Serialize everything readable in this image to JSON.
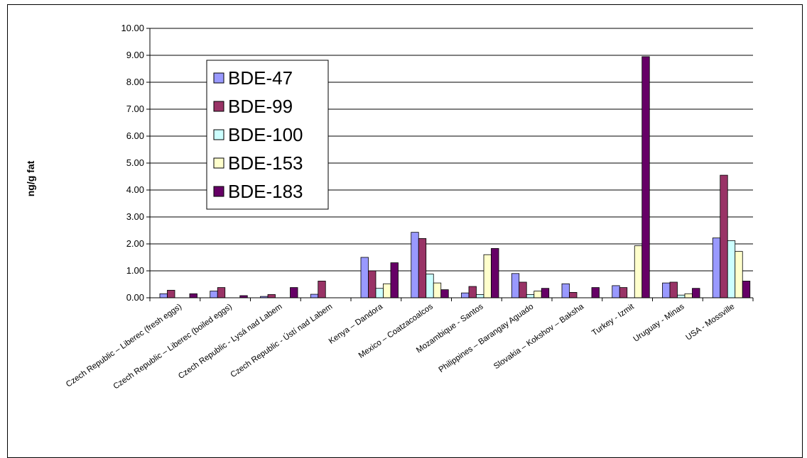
{
  "chart_data": {
    "type": "bar",
    "ylabel": "ng/g fat",
    "xlabel": "",
    "ylim": [
      0,
      10
    ],
    "yticks": [
      "0.00",
      "1.00",
      "2.00",
      "3.00",
      "4.00",
      "5.00",
      "6.00",
      "7.00",
      "8.00",
      "9.00",
      "10.00"
    ],
    "grid": "horizontal",
    "legend_position": "upper-left-inside",
    "categories": [
      "Czech Republic – Liberec (fresh eggs)",
      "Czech Republic – Liberec (boiled eggs)",
      "Czech Republic - Lysá nad Labem",
      "Czech Republic - Ústí nad Labem",
      "Kenya – Dandora",
      "Mexico – Coatzacoalcos",
      "Mozambique - Santos",
      "Philippines – Barangay Aguado",
      "Slovakia – Kokshov – Baksha",
      "Turkey - Izmit",
      "Uruguay - Minas",
      "USA - Mossville"
    ],
    "series": [
      {
        "name": "BDE-47",
        "color": "#9999ff",
        "values": [
          0.15,
          0.25,
          0.05,
          0.13,
          1.5,
          2.43,
          0.18,
          0.9,
          0.52,
          0.45,
          0.55,
          2.22
        ]
      },
      {
        "name": "BDE-99",
        "color": "#993366",
        "values": [
          0.28,
          0.38,
          0.12,
          0.62,
          1.0,
          2.2,
          0.42,
          0.58,
          0.2,
          0.38,
          0.58,
          4.55
        ]
      },
      {
        "name": "BDE-100",
        "color": "#ccffff",
        "values": [
          0.0,
          0.0,
          0.0,
          0.0,
          0.35,
          0.88,
          0.12,
          0.12,
          0.0,
          0.0,
          0.1,
          2.12
        ]
      },
      {
        "name": "BDE-153",
        "color": "#ffffcc",
        "values": [
          0.0,
          0.0,
          0.0,
          0.0,
          0.52,
          0.55,
          1.6,
          0.25,
          0.0,
          1.93,
          0.15,
          1.72
        ]
      },
      {
        "name": "BDE-183",
        "color": "#660066",
        "values": [
          0.15,
          0.08,
          0.38,
          0.0,
          1.3,
          0.3,
          1.83,
          0.35,
          0.38,
          8.95,
          0.35,
          0.62
        ]
      }
    ]
  }
}
